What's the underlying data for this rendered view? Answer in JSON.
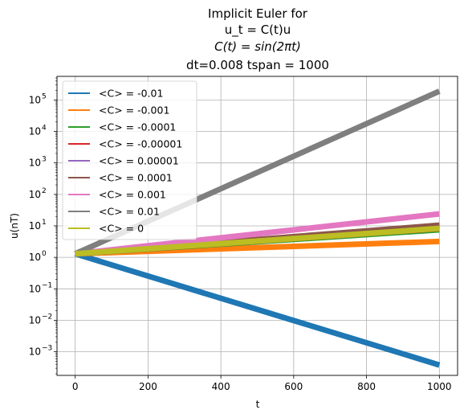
{
  "chart_data": {
    "type": "line",
    "title_lines": [
      "Implicit Euler for",
      "u_t = C(t)u",
      "C(t) = sin(2πt)",
      "dt=0.008 tspan = 1000"
    ],
    "xlabel": "t",
    "ylabel": "u(nT)",
    "xlim": [
      -50,
      1050
    ],
    "ylim_log10": [
      -3.75,
      5.75
    ],
    "yscale": "log",
    "grid": true,
    "legend_position": "upper-left",
    "x_ticks": [
      0,
      200,
      400,
      600,
      800,
      1000
    ],
    "x_tick_labels": [
      "0",
      "200",
      "400",
      "600",
      "800",
      "1000"
    ],
    "y_ticks_log10": [
      -3,
      -2,
      -1,
      0,
      1,
      2,
      3,
      4,
      5
    ],
    "y_tick_labels": [
      "10",
      "10",
      "10",
      "10",
      "10",
      "10",
      "10",
      "10",
      "10"
    ],
    "y_tick_exponents": [
      "−3",
      "−2",
      "−1",
      "0",
      "1",
      "2",
      "3",
      "4",
      "5"
    ],
    "series": [
      {
        "name": "<C> = -0.01",
        "color": "#1f77b4",
        "x": [
          0,
          1000
        ],
        "y": [
          1.3,
          0.00038
        ]
      },
      {
        "name": "<C> = -0.001",
        "color": "#ff7f0e",
        "x": [
          0,
          1000
        ],
        "y": [
          1.3,
          3.2
        ]
      },
      {
        "name": "<C> = -0.0001",
        "color": "#2ca02c",
        "x": [
          0,
          1000
        ],
        "y": [
          1.3,
          7.5
        ]
      },
      {
        "name": "<C> = -0.00001",
        "color": "#d62728",
        "x": [
          0,
          1000
        ],
        "y": [
          1.3,
          8.2
        ]
      },
      {
        "name": "<C> = 0.00001",
        "color": "#9467bd",
        "x": [
          0,
          1000
        ],
        "y": [
          1.3,
          8.5
        ]
      },
      {
        "name": "<C> = 0.0001",
        "color": "#8c564b",
        "x": [
          0,
          1000
        ],
        "y": [
          1.3,
          10.5
        ]
      },
      {
        "name": "<C> = 0.001",
        "color": "#e377c2",
        "x": [
          0,
          1000
        ],
        "y": [
          1.3,
          24
        ]
      },
      {
        "name": "<C> = 0.01",
        "color": "#7f7f7f",
        "x": [
          0,
          1000
        ],
        "y": [
          1.3,
          190000
        ]
      },
      {
        "name": "<C> = 0",
        "color": "#bcbd22",
        "x": [
          0,
          1000
        ],
        "y": [
          1.3,
          8.3
        ]
      }
    ]
  }
}
